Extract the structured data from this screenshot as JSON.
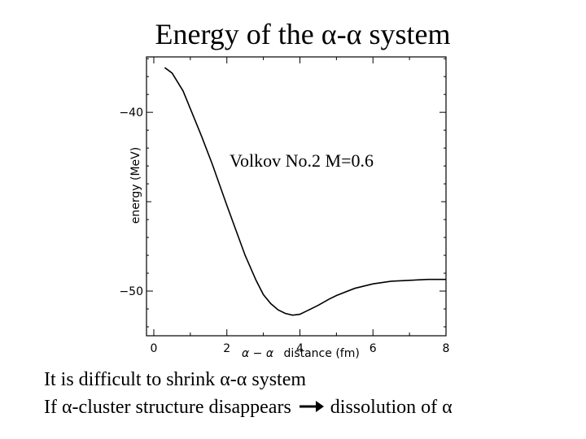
{
  "slide": {
    "title": "Energy of the α-α system",
    "caption_line1": "It is difficult to shrink α-α system",
    "caption_line2_before": "If α-cluster structure disappears",
    "caption_line2_after": "dissolution of  α"
  },
  "chart_data": {
    "type": "line",
    "title": "",
    "xlabel_prefix": "α − α",
    "xlabel_rest": "distance (fm)",
    "ylabel": "energy (MeV)",
    "xlim": [
      -0.2,
      8.0
    ],
    "ylim": [
      -52.5,
      -36.9
    ],
    "x_ticks": [
      0,
      2,
      4,
      6,
      8
    ],
    "x_tick_labels": [
      "0",
      "2",
      "4",
      "6",
      "8"
    ],
    "y_ticks": [
      -40,
      -50
    ],
    "y_tick_labels": [
      "−40",
      "−50"
    ],
    "annotation": "Volkov No.2 M=0.6",
    "grid": false,
    "series": [
      {
        "color": "#000000",
        "x": [
          0.3,
          0.5,
          0.8,
          1.0,
          1.3,
          1.6,
          2.0,
          2.5,
          2.8,
          3.0,
          3.2,
          3.4,
          3.6,
          3.8,
          4.0,
          4.2,
          4.5,
          4.8,
          5.0,
          5.5,
          6.0,
          6.5,
          7.0,
          7.5,
          8.0
        ],
        "y": [
          -37.5,
          -37.8,
          -38.8,
          -39.8,
          -41.3,
          -42.9,
          -45.2,
          -48.0,
          -49.4,
          -50.2,
          -50.7,
          -51.05,
          -51.25,
          -51.35,
          -51.3,
          -51.1,
          -50.8,
          -50.45,
          -50.25,
          -49.85,
          -49.6,
          -49.45,
          -49.4,
          -49.35,
          -49.35
        ]
      }
    ]
  },
  "colors": {
    "text": "#000000",
    "background": "#ffffff",
    "arrow": "#000000"
  },
  "icons": {
    "caption_arrow": "right-arrow-icon"
  }
}
